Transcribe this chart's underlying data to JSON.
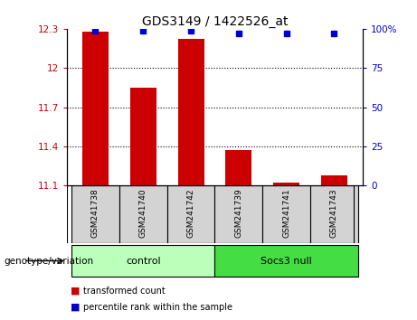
{
  "title": "GDS3149 / 1422526_at",
  "samples": [
    "GSM241738",
    "GSM241740",
    "GSM241742",
    "GSM241739",
    "GSM241741",
    "GSM241743"
  ],
  "transformed_counts": [
    12.28,
    11.85,
    12.22,
    11.37,
    11.12,
    11.18
  ],
  "percentile_ranks": [
    99,
    99,
    99,
    97,
    97,
    97
  ],
  "bar_color": "#CC0000",
  "dot_color": "#0000CC",
  "ylim_left": [
    11.1,
    12.3
  ],
  "ylim_right": [
    0,
    100
  ],
  "yticks_left": [
    11.1,
    11.4,
    11.7,
    12.0,
    12.3
  ],
  "ytick_labels_left": [
    "11.1",
    "11.4",
    "11.7",
    "12",
    "12.3"
  ],
  "yticks_right": [
    0,
    25,
    50,
    75,
    100
  ],
  "ytick_labels_right": [
    "0",
    "25",
    "50",
    "75",
    "100%"
  ],
  "hlines": [
    11.4,
    11.7,
    12.0
  ],
  "bar_width": 0.55,
  "background_color": "#ffffff",
  "legend_items": [
    "transformed count",
    "percentile rank within the sample"
  ],
  "legend_colors": [
    "#CC0000",
    "#0000CC"
  ],
  "genotype_label": "genotype/variation",
  "control_color": "#bbffbb",
  "socs3_color": "#44dd44",
  "label_bg": "#d3d3d3"
}
